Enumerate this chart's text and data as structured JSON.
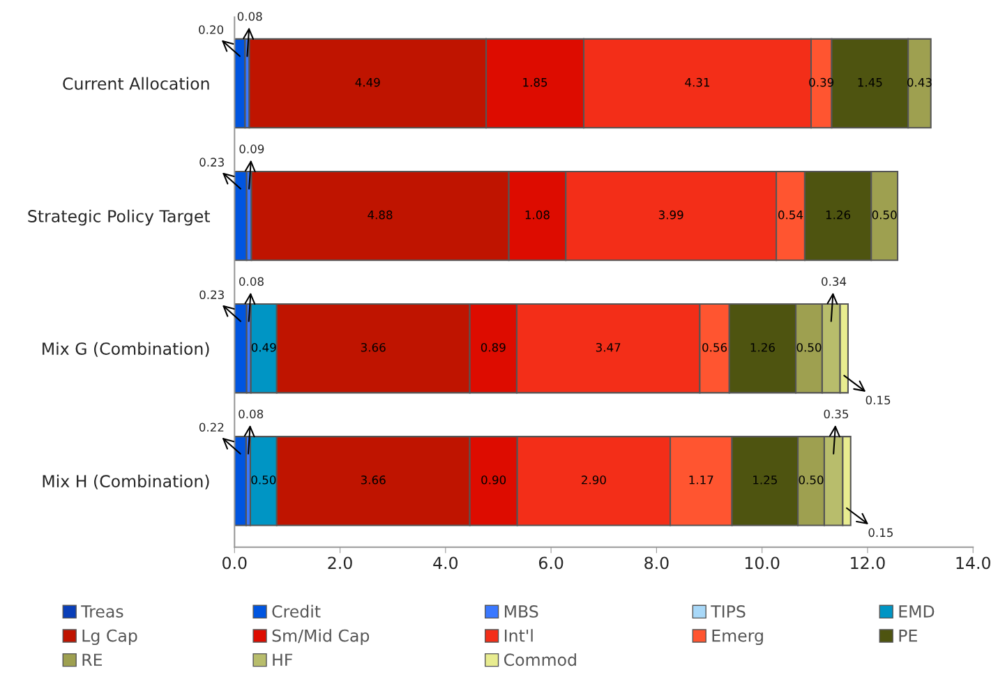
{
  "chart_data": {
    "type": "bar",
    "orientation": "horizontal",
    "stacked": true,
    "legend": "bottom",
    "grid": false,
    "categories": [
      "Current Allocation",
      "Strategic Policy Target",
      "Mix G (Combination)",
      "Mix H (Combination)"
    ],
    "xlim": [
      0,
      14
    ],
    "xticks": [
      {
        "value": 0,
        "label": "0.0"
      },
      {
        "value": 2,
        "label": "2.0"
      },
      {
        "value": 4,
        "label": "4.0"
      },
      {
        "value": 6,
        "label": "6.0"
      },
      {
        "value": 8,
        "label": "8.0"
      },
      {
        "value": 10,
        "label": "10.0"
      },
      {
        "value": 12,
        "label": "12.0"
      },
      {
        "value": 14,
        "label": "14.0"
      }
    ],
    "series": [
      {
        "name": "Treas",
        "color": "#0a3fb8",
        "values": [
          null,
          null,
          null,
          null
        ]
      },
      {
        "name": "Credit",
        "color": "#0055e0",
        "values": [
          0.2,
          0.23,
          0.23,
          0.22
        ],
        "value_labels": [
          "0.20",
          "0.23",
          "0.23",
          "0.22"
        ]
      },
      {
        "name": "MBS",
        "color": "#3a78ff",
        "values": [
          0.08,
          0.09,
          0.08,
          0.08
        ],
        "value_labels": [
          "0.08",
          "0.09",
          "0.08",
          "0.08"
        ]
      },
      {
        "name": "TIPS",
        "color": "#a8d8f8",
        "values": [
          null,
          null,
          null,
          null
        ]
      },
      {
        "name": "EMD",
        "color": "#0095c4",
        "values": [
          null,
          null,
          0.49,
          0.5
        ],
        "value_labels": [
          null,
          null,
          "0.49",
          "0.50"
        ]
      },
      {
        "name": "Lg Cap",
        "color": "#bf1400",
        "values": [
          4.49,
          4.88,
          3.66,
          3.66
        ],
        "value_labels": [
          "4.49",
          "4.88",
          "3.66",
          "3.66"
        ]
      },
      {
        "name": "Sm/Mid Cap",
        "color": "#dd0c00",
        "values": [
          1.85,
          1.08,
          0.89,
          0.9
        ],
        "value_labels": [
          "1.85",
          "1.08",
          "0.89",
          "0.90"
        ]
      },
      {
        "name": "Int'l",
        "color": "#f32e18",
        "values": [
          4.31,
          3.99,
          3.47,
          2.9
        ],
        "value_labels": [
          "4.31",
          "3.99",
          "3.47",
          "2.90"
        ]
      },
      {
        "name": "Emerg",
        "color": "#ff5530",
        "values": [
          0.39,
          0.54,
          0.56,
          1.17
        ],
        "value_labels": [
          "0.39",
          "0.54",
          "0.56",
          "1.17"
        ]
      },
      {
        "name": "PE",
        "color": "#4e5410",
        "values": [
          1.45,
          1.26,
          1.26,
          1.25
        ],
        "value_labels": [
          "1.45",
          "1.26",
          "1.26",
          "1.25"
        ]
      },
      {
        "name": "RE",
        "color": "#9ea050",
        "values": [
          0.43,
          0.5,
          0.5,
          0.5
        ],
        "value_labels": [
          "0.43",
          "0.50",
          "0.50",
          "0.50"
        ]
      },
      {
        "name": "HF",
        "color": "#b8bd6c",
        "values": [
          null,
          null,
          0.34,
          0.35
        ],
        "value_labels": [
          null,
          null,
          "0.34",
          "0.35"
        ]
      },
      {
        "name": "Commod",
        "color": "#e8ec90",
        "values": [
          null,
          null,
          0.15,
          0.15
        ],
        "value_labels": [
          null,
          null,
          "0.15",
          "0.15"
        ]
      }
    ]
  }
}
